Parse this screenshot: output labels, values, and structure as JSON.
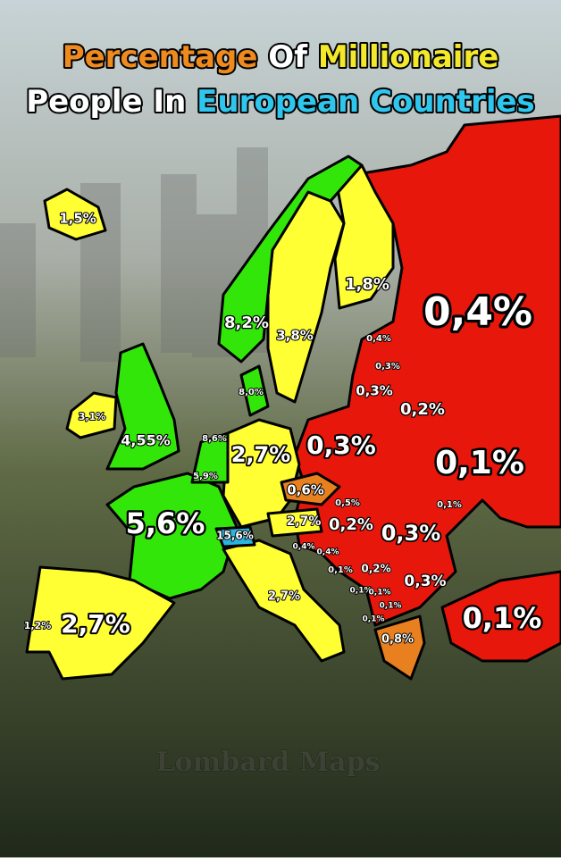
{
  "title": {
    "line1": [
      "Percentage",
      "Of",
      "Millionaire"
    ],
    "line2": [
      "People In",
      "European Countries"
    ]
  },
  "labels": [
    "1,5%",
    "1,8%",
    "0,4%",
    "8,2%",
    "3,8%",
    "0,4%",
    "0,3%",
    "0,3%",
    "8,0%",
    "0,2%",
    "3,1%",
    "4,55%",
    "8,6%",
    "2,7%",
    "0,3%",
    "0,1%",
    "5,9%",
    "0,6%",
    "0,5%",
    "0,1%",
    "5,6%",
    "2,7%",
    "0,2%",
    "0,3%",
    "15,6%",
    "0,4%",
    "0,4%",
    "0,1%",
    "0,2%",
    "0,3%",
    "2,7%",
    "0,1%",
    "0,1%",
    "0,1%",
    "0,1%",
    "1,2%",
    "2,7%",
    "0,1%",
    "0,8%"
  ],
  "watermark": "Lombard Maps"
}
